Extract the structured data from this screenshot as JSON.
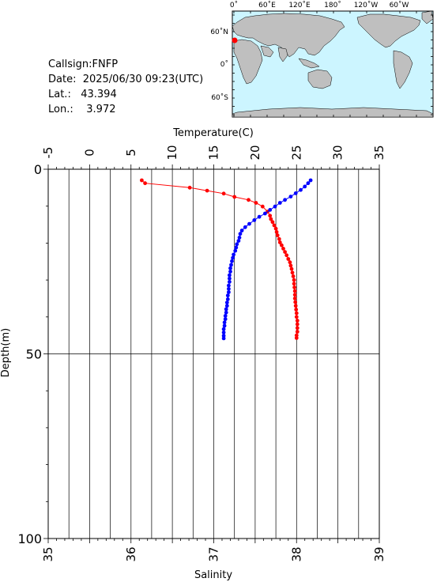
{
  "station": {
    "callsign_label": "Callsign:",
    "callsign": "FNFP",
    "date_label": "Date:",
    "date": "2025/06/30 09:23(UTC)",
    "lat_label": "Lat.:",
    "lat": "43.394",
    "lon_label": "Lon.:",
    "lon": "3.972"
  },
  "map": {
    "top_labels": [
      "0˚",
      "60˚E",
      "120˚E",
      "180˚",
      "120˚W",
      "60˚W"
    ],
    "left_labels": [
      "60˚N",
      "0˚",
      "60˚S"
    ],
    "ocean_color": "#ccf5ff",
    "land_color": "#bfbfbf",
    "marker_color": "#ff0000"
  },
  "chart_data": {
    "type": "line",
    "top_axis": {
      "label": "Temperature(C)",
      "range": [
        -5,
        35
      ],
      "ticks": [
        -5,
        0,
        5,
        10,
        15,
        20,
        25,
        30,
        35
      ]
    },
    "bottom_axis": {
      "label": "Salinity",
      "range": [
        35,
        39
      ],
      "ticks": [
        35,
        36,
        37,
        38,
        39
      ]
    },
    "y_axis": {
      "label": "Depth(m)",
      "range": [
        0,
        100
      ],
      "ticks": [
        0,
        50,
        100
      ],
      "inverted": true
    },
    "grid": true,
    "series": [
      {
        "axis": "temperature",
        "color": "#ff0000",
        "points": [
          [
            6.3,
            3.0
          ],
          [
            6.7,
            3.8
          ],
          [
            12.1,
            5.0
          ],
          [
            14.2,
            5.8
          ],
          [
            16.2,
            6.6
          ],
          [
            17.5,
            7.5
          ],
          [
            19.2,
            8.3
          ],
          [
            20.1,
            9.1
          ],
          [
            20.9,
            10.1
          ],
          [
            21.5,
            11.5
          ],
          [
            21.8,
            12.6
          ],
          [
            21.9,
            13.5
          ],
          [
            22.1,
            14.3
          ],
          [
            22.3,
            15.2
          ],
          [
            22.5,
            16.1
          ],
          [
            22.6,
            17.0
          ],
          [
            22.7,
            17.9
          ],
          [
            22.9,
            18.9
          ],
          [
            23.0,
            19.8
          ],
          [
            23.2,
            20.6
          ],
          [
            23.4,
            21.5
          ],
          [
            23.6,
            22.4
          ],
          [
            23.8,
            23.3
          ],
          [
            24.0,
            24.3
          ],
          [
            24.2,
            25.2
          ],
          [
            24.3,
            26.1
          ],
          [
            24.4,
            27.0
          ],
          [
            24.5,
            28.0
          ],
          [
            24.6,
            29.0
          ],
          [
            24.7,
            30.0
          ],
          [
            24.7,
            31.0
          ],
          [
            24.75,
            32.0
          ],
          [
            24.8,
            33.0
          ],
          [
            24.8,
            34.0
          ],
          [
            24.8,
            35.0
          ],
          [
            24.85,
            36.0
          ],
          [
            24.9,
            37.0
          ],
          [
            24.95,
            38.0
          ],
          [
            25.0,
            39.0
          ],
          [
            25.0,
            40.0
          ],
          [
            25.1,
            41.0
          ],
          [
            25.1,
            42.0
          ],
          [
            25.1,
            43.0
          ],
          [
            25.1,
            44.0
          ],
          [
            25.0,
            45.0
          ],
          [
            25.0,
            45.7
          ]
        ]
      },
      {
        "axis": "salinity",
        "color": "#0000ff",
        "points": [
          [
            38.17,
            3.0
          ],
          [
            38.14,
            3.8
          ],
          [
            38.1,
            4.7
          ],
          [
            38.05,
            5.6
          ],
          [
            37.99,
            6.5
          ],
          [
            37.93,
            7.4
          ],
          [
            37.86,
            8.3
          ],
          [
            37.8,
            9.1
          ],
          [
            37.74,
            10.1
          ],
          [
            37.68,
            11.0
          ],
          [
            37.62,
            12.0
          ],
          [
            37.55,
            12.9
          ],
          [
            37.49,
            13.8
          ],
          [
            37.43,
            14.8
          ],
          [
            37.38,
            15.7
          ],
          [
            37.34,
            16.6
          ],
          [
            37.32,
            17.5
          ],
          [
            37.31,
            18.5
          ],
          [
            37.3,
            19.4
          ],
          [
            37.28,
            20.3
          ],
          [
            37.27,
            21.2
          ],
          [
            37.26,
            22.1
          ],
          [
            37.24,
            23.1
          ],
          [
            37.23,
            24.0
          ],
          [
            37.22,
            24.9
          ],
          [
            37.21,
            25.9
          ],
          [
            37.2,
            26.8
          ],
          [
            37.2,
            27.7
          ],
          [
            37.19,
            28.7
          ],
          [
            37.19,
            29.6
          ],
          [
            37.19,
            30.5
          ],
          [
            37.18,
            31.5
          ],
          [
            37.18,
            32.4
          ],
          [
            37.18,
            33.3
          ],
          [
            37.17,
            34.2
          ],
          [
            37.17,
            35.2
          ],
          [
            37.16,
            36.1
          ],
          [
            37.16,
            37.0
          ],
          [
            37.15,
            37.9
          ],
          [
            37.15,
            38.8
          ],
          [
            37.14,
            39.7
          ],
          [
            37.14,
            40.6
          ],
          [
            37.13,
            41.5
          ],
          [
            37.13,
            42.4
          ],
          [
            37.12,
            43.3
          ],
          [
            37.12,
            44.2
          ],
          [
            37.12,
            45.1
          ],
          [
            37.12,
            45.8
          ]
        ]
      }
    ]
  }
}
